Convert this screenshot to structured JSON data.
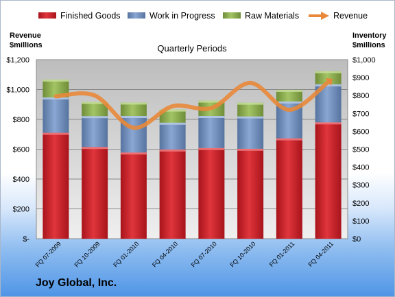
{
  "company": "Joy Global, Inc.",
  "chart_data": {
    "type": "bar",
    "stacked": true,
    "title": "Quarterly Periods",
    "categories": [
      "FQ 07-2009",
      "FQ 10-2009",
      "FQ 01-2010",
      "FQ 04-2010",
      "FQ 07-2010",
      "FQ 10-2010",
      "FQ 01-2011",
      "FQ 04-2011"
    ],
    "series": [
      {
        "name": "Finished Goods",
        "color": "#c8232a",
        "axis": "left",
        "values": [
          710,
          615,
          578,
          598,
          608,
          603,
          673,
          780
        ]
      },
      {
        "name": "Work in Progress",
        "color": "#6f8fc0",
        "axis": "left",
        "values": [
          237,
          207,
          245,
          180,
          215,
          217,
          247,
          255
        ]
      },
      {
        "name": "Raw Materials",
        "color": "#8cae4e",
        "axis": "left",
        "values": [
          120,
          95,
          90,
          88,
          103,
          92,
          78,
          88
        ]
      }
    ],
    "line_series": {
      "name": "Revenue",
      "color": "#e8883a",
      "axis": "right",
      "values": [
        795,
        800,
        620,
        740,
        730,
        870,
        720,
        875
      ]
    },
    "left_axis": {
      "label_line1": "Revenue",
      "label_line2": "$millions",
      "ylim": [
        0,
        1200
      ],
      "ticks": [
        "$-",
        "$200",
        "$400",
        "$600",
        "$800",
        "$1,000",
        "$1,200"
      ]
    },
    "right_axis": {
      "label_line1": "Inventory",
      "label_line2": "$millions",
      "ylim": [
        0,
        1000
      ],
      "ticks": [
        "$0",
        "$100",
        "$200",
        "$300",
        "$400",
        "$500",
        "$600",
        "$700",
        "$800",
        "$900",
        "$1,000"
      ]
    },
    "grid": true,
    "legend_position": "top"
  }
}
